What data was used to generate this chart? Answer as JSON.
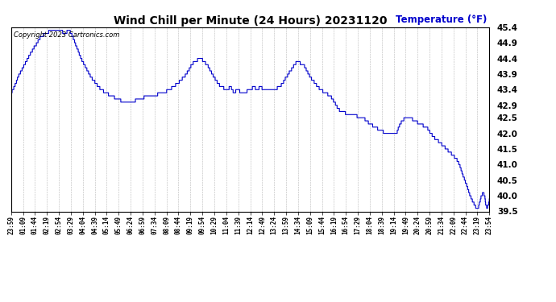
{
  "title": "Wind Chill per Minute (24 Hours) 20231120",
  "ylabel": "Temperature (°F)",
  "copyright_text": "Copyright 2023 Cartronics.com",
  "line_color": "#0000cc",
  "ylabel_color": "#0000cc",
  "background_color": "#ffffff",
  "grid_color": "#999999",
  "ylim": [
    39.5,
    45.4
  ],
  "yticks": [
    39.5,
    40.0,
    40.5,
    41.0,
    41.5,
    42.0,
    42.5,
    42.9,
    43.4,
    43.9,
    44.4,
    44.9,
    45.4
  ],
  "x_labels": [
    "23:59",
    "01:09",
    "01:44",
    "02:19",
    "02:54",
    "03:29",
    "04:04",
    "04:39",
    "05:14",
    "05:49",
    "06:24",
    "06:59",
    "07:34",
    "08:09",
    "08:44",
    "09:19",
    "09:54",
    "10:29",
    "11:04",
    "11:39",
    "12:14",
    "12:49",
    "13:24",
    "13:59",
    "14:34",
    "15:09",
    "15:44",
    "16:19",
    "16:54",
    "17:29",
    "18:04",
    "18:39",
    "19:14",
    "19:49",
    "20:24",
    "20:59",
    "21:34",
    "22:09",
    "22:44",
    "23:19",
    "23:54"
  ],
  "figsize": [
    6.9,
    3.75
  ],
  "dpi": 100
}
